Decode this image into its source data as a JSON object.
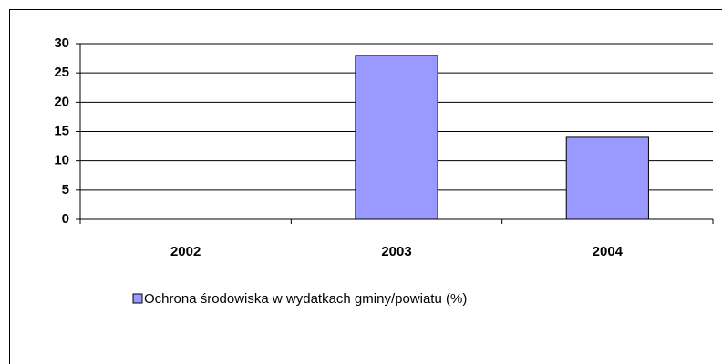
{
  "chart_data": {
    "type": "bar",
    "categories": [
      "2002",
      "2003",
      "2004"
    ],
    "series": [
      {
        "name": "Ochrona środowiska w wydatkach gminy/powiatu (%)",
        "color": "#9999ff",
        "values": [
          0,
          28,
          14
        ]
      }
    ],
    "ylim": [
      0,
      30
    ],
    "yticks": [
      0,
      5,
      10,
      15,
      20,
      25,
      30
    ],
    "grid": true
  }
}
